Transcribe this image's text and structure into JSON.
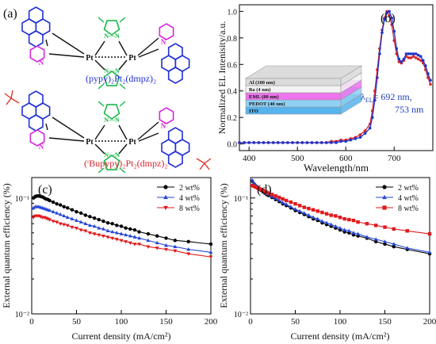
{
  "figure": {
    "panel_a": {
      "label": "(a)",
      "compound1": "(pypy)₂Pt₂(dmpz)₂",
      "compound2": "(ᵗBupypy)₂Pt₂(dmpz)₂",
      "atoms": {
        "pt": "Pt",
        "n": "N",
        "n2": "N—N"
      },
      "colors": {
        "pyrene": "#1f2fd6",
        "pyridine": "#d42ad9",
        "pyrazole": "#19b84a",
        "tbu": "#e0352c",
        "bond": "#111111",
        "compound1": "#1f2fd6",
        "compound2": "#d6262b"
      }
    },
    "panel_b": {
      "label": "(b)",
      "device_layers": [
        "Al (100 nm)",
        "Ba (4 nm)",
        "EML (80 nm)",
        "PEDOT (40 nm)",
        "ITO"
      ],
      "layer_colors": [
        "#dcdcdc",
        "#f3f3f3",
        "#ee74ee",
        "#8fd0f4",
        "#55b3ee"
      ],
      "annotation_prefix": "λ",
      "annotation_sub": "EL",
      "annotation_value": "= 692 nm,",
      "annotation_value2": "753 nm"
    }
  },
  "chart_data": [
    {
      "id": "b",
      "type": "line",
      "xlabel": "Wavelength/nm",
      "ylabel": "Normalized EL Intenisity/a.u.",
      "xlim": [
        380,
        780
      ],
      "ylim": [
        -0.05,
        1.05
      ],
      "xticks": [
        400,
        500,
        600,
        700
      ],
      "yticks": [
        0.0,
        0.2,
        0.4,
        0.6,
        0.8,
        1.0
      ],
      "series": [
        {
          "color": "#d6262b",
          "x": [
            380,
            390,
            400,
            410,
            420,
            430,
            440,
            450,
            460,
            470,
            480,
            490,
            500,
            510,
            520,
            530,
            540,
            550,
            560,
            570,
            580,
            590,
            600,
            610,
            620,
            630,
            640,
            650,
            655,
            660,
            665,
            670,
            675,
            680,
            685,
            690,
            695,
            700,
            705,
            710,
            715,
            720,
            725,
            730,
            735,
            740,
            745,
            750,
            755,
            760,
            765,
            770,
            775
          ],
          "y": [
            0.01,
            0.01,
            0.01,
            0.01,
            0.01,
            0.01,
            0.01,
            0.01,
            0.01,
            0.01,
            0.01,
            0.01,
            0.01,
            0.01,
            0.01,
            0.01,
            0.01,
            0.01,
            0.01,
            0.02,
            0.02,
            0.03,
            0.03,
            0.04,
            0.05,
            0.07,
            0.1,
            0.15,
            0.25,
            0.4,
            0.56,
            0.72,
            0.86,
            0.95,
            1.0,
            0.97,
            0.9,
            0.78,
            0.68,
            0.62,
            0.61,
            0.63,
            0.66,
            0.65,
            0.65,
            0.66,
            0.65,
            0.64,
            0.63,
            0.61,
            0.56,
            0.5,
            0.45
          ]
        },
        {
          "color": "#2035c8",
          "x": [
            380,
            390,
            400,
            410,
            420,
            430,
            440,
            450,
            460,
            470,
            480,
            490,
            500,
            510,
            520,
            530,
            540,
            550,
            560,
            570,
            580,
            590,
            600,
            610,
            620,
            630,
            640,
            650,
            655,
            660,
            665,
            670,
            675,
            680,
            685,
            690,
            695,
            700,
            705,
            710,
            715,
            720,
            725,
            730,
            735,
            740,
            745,
            750,
            755,
            760,
            765,
            770,
            775
          ],
          "y": [
            0.01,
            0.01,
            0.01,
            0.01,
            0.01,
            0.01,
            0.01,
            0.01,
            0.01,
            0.01,
            0.01,
            0.01,
            0.01,
            0.01,
            0.01,
            0.01,
            0.01,
            0.01,
            0.01,
            0.01,
            0.01,
            0.02,
            0.02,
            0.03,
            0.04,
            0.05,
            0.08,
            0.12,
            0.2,
            0.33,
            0.5,
            0.68,
            0.84,
            0.94,
            0.99,
            1.0,
            0.95,
            0.85,
            0.72,
            0.64,
            0.62,
            0.64,
            0.68,
            0.68,
            0.68,
            0.68,
            0.68,
            0.67,
            0.66,
            0.63,
            0.59,
            0.53,
            0.48
          ]
        }
      ]
    },
    {
      "id": "c",
      "type": "line",
      "label": "(c)",
      "xlabel": "Current density (mA/cm²)",
      "ylabel": "External quantum efficiency (%)",
      "xlim": [
        0,
        200
      ],
      "ylim": [
        0.01,
        0.15
      ],
      "yscale": "log",
      "xticks": [
        0,
        50,
        100,
        150,
        200
      ],
      "ytick_labels": [
        "10⁻¹",
        "10⁻²"
      ],
      "legend_position": "top-right",
      "series": [
        {
          "name": "2 wt%",
          "color": "#000000",
          "marker": "circle",
          "x": [
            2,
            4,
            6,
            8,
            10,
            12,
            14,
            16,
            18,
            20,
            24,
            28,
            32,
            36,
            40,
            45,
            50,
            55,
            60,
            65,
            70,
            75,
            80,
            85,
            90,
            95,
            100,
            105,
            110,
            115,
            120,
            130,
            140,
            150,
            160,
            175,
            200
          ],
          "y": [
            0.1,
            0.103,
            0.104,
            0.104,
            0.103,
            0.102,
            0.1,
            0.098,
            0.097,
            0.095,
            0.092,
            0.089,
            0.087,
            0.084,
            0.082,
            0.079,
            0.076,
            0.074,
            0.071,
            0.069,
            0.067,
            0.065,
            0.063,
            0.061,
            0.06,
            0.058,
            0.057,
            0.055,
            0.054,
            0.053,
            0.051,
            0.049,
            0.047,
            0.045,
            0.043,
            0.042,
            0.04
          ]
        },
        {
          "name": "4 wt%",
          "color": "#2646d9",
          "marker": "triangle",
          "x": [
            2,
            4,
            6,
            8,
            10,
            12,
            14,
            16,
            18,
            20,
            24,
            28,
            32,
            36,
            40,
            45,
            50,
            55,
            60,
            65,
            70,
            75,
            80,
            85,
            90,
            95,
            100,
            105,
            110,
            115,
            120,
            130,
            140,
            150,
            160,
            175,
            200
          ],
          "y": [
            0.082,
            0.084,
            0.084,
            0.084,
            0.083,
            0.082,
            0.081,
            0.08,
            0.079,
            0.078,
            0.076,
            0.074,
            0.072,
            0.07,
            0.068,
            0.066,
            0.064,
            0.062,
            0.06,
            0.058,
            0.057,
            0.055,
            0.054,
            0.052,
            0.051,
            0.05,
            0.049,
            0.048,
            0.047,
            0.046,
            0.045,
            0.043,
            0.041,
            0.039,
            0.038,
            0.036,
            0.034
          ]
        },
        {
          "name": "8 wt%",
          "color": "#e0191c",
          "marker": "triangle-down",
          "x": [
            2,
            4,
            6,
            8,
            10,
            12,
            14,
            16,
            18,
            20,
            24,
            28,
            32,
            36,
            40,
            45,
            50,
            55,
            60,
            65,
            70,
            75,
            80,
            85,
            90,
            95,
            100,
            105,
            110,
            115,
            120,
            130,
            140,
            150,
            160,
            175,
            200
          ],
          "y": [
            0.068,
            0.07,
            0.07,
            0.07,
            0.069,
            0.068,
            0.068,
            0.067,
            0.066,
            0.065,
            0.063,
            0.062,
            0.06,
            0.059,
            0.058,
            0.056,
            0.055,
            0.053,
            0.052,
            0.05,
            0.049,
            0.048,
            0.047,
            0.046,
            0.045,
            0.044,
            0.043,
            0.042,
            0.041,
            0.04,
            0.04,
            0.038,
            0.037,
            0.036,
            0.035,
            0.033,
            0.031
          ]
        }
      ]
    },
    {
      "id": "d",
      "type": "line",
      "label": "(d)",
      "xlabel": "Current density (mA/cm²)",
      "ylabel": "External quantum efficiency (%)",
      "xlim": [
        0,
        200
      ],
      "ylim": [
        0.01,
        0.15
      ],
      "yscale": "log",
      "xticks": [
        0,
        50,
        100,
        150,
        200
      ],
      "ytick_labels": [
        "10⁻¹",
        "10⁻²"
      ],
      "legend_position": "top-right",
      "series": [
        {
          "name": "2 wt%",
          "color": "#000000",
          "marker": "circle",
          "x": [
            2,
            4,
            6,
            8,
            10,
            12,
            14,
            16,
            18,
            20,
            24,
            28,
            32,
            36,
            40,
            45,
            50,
            55,
            60,
            65,
            70,
            75,
            80,
            85,
            90,
            95,
            100,
            105,
            110,
            115,
            120,
            130,
            140,
            150,
            160,
            175,
            200
          ],
          "y": [
            0.14,
            0.132,
            0.127,
            0.123,
            0.119,
            0.116,
            0.113,
            0.11,
            0.107,
            0.105,
            0.101,
            0.097,
            0.093,
            0.089,
            0.086,
            0.082,
            0.078,
            0.075,
            0.072,
            0.069,
            0.066,
            0.064,
            0.061,
            0.059,
            0.057,
            0.055,
            0.053,
            0.051,
            0.05,
            0.048,
            0.047,
            0.045,
            0.042,
            0.04,
            0.038,
            0.036,
            0.033
          ]
        },
        {
          "name": "4 wt%",
          "color": "#2646d9",
          "marker": "triangle",
          "x": [
            2,
            4,
            6,
            8,
            10,
            12,
            14,
            16,
            18,
            20,
            24,
            28,
            32,
            36,
            40,
            45,
            50,
            55,
            60,
            65,
            70,
            75,
            80,
            85,
            90,
            95,
            100,
            105,
            110,
            115,
            120,
            130,
            140,
            150,
            160,
            175,
            200
          ],
          "y": [
            0.142,
            0.134,
            0.129,
            0.125,
            0.121,
            0.118,
            0.115,
            0.112,
            0.109,
            0.107,
            0.103,
            0.099,
            0.095,
            0.091,
            0.088,
            0.084,
            0.08,
            0.077,
            0.074,
            0.071,
            0.068,
            0.066,
            0.063,
            0.061,
            0.059,
            0.057,
            0.055,
            0.053,
            0.052,
            0.05,
            0.049,
            0.046,
            0.044,
            0.042,
            0.04,
            0.037,
            0.034
          ]
        },
        {
          "name": "8 wt%",
          "color": "#e0191c",
          "marker": "square",
          "x": [
            2,
            4,
            6,
            8,
            10,
            12,
            14,
            16,
            18,
            20,
            24,
            28,
            32,
            36,
            40,
            45,
            50,
            55,
            60,
            65,
            70,
            75,
            80,
            85,
            90,
            95,
            100,
            105,
            110,
            115,
            120,
            130,
            140,
            150,
            160,
            175,
            200
          ],
          "y": [
            0.128,
            0.126,
            0.124,
            0.122,
            0.12,
            0.118,
            0.116,
            0.114,
            0.112,
            0.11,
            0.107,
            0.104,
            0.101,
            0.098,
            0.095,
            0.092,
            0.089,
            0.086,
            0.083,
            0.081,
            0.079,
            0.077,
            0.075,
            0.073,
            0.071,
            0.07,
            0.068,
            0.066,
            0.065,
            0.064,
            0.062,
            0.06,
            0.058,
            0.056,
            0.054,
            0.052,
            0.049
          ]
        }
      ]
    }
  ]
}
